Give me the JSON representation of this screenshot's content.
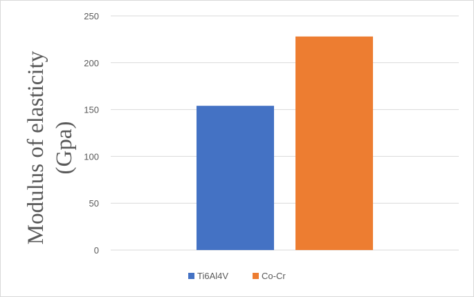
{
  "chart_data": {
    "type": "bar",
    "title": "",
    "xlabel": "",
    "ylabel_lines": [
      "Modulus of elasticity",
      "(Gpa)"
    ],
    "ylim": [
      0,
      250
    ],
    "yticks": [
      "0",
      "50",
      "100",
      "150",
      "200",
      "250"
    ],
    "grid": true,
    "legend_position": "bottom",
    "series": [
      {
        "name": "Ti6Al4V",
        "value": 154,
        "color": "#4472C4"
      },
      {
        "name": "Co-Cr",
        "value": 228,
        "color": "#ED7D31"
      }
    ]
  },
  "colors": {
    "gridline": "#d9d9d9",
    "text": "#595959"
  }
}
